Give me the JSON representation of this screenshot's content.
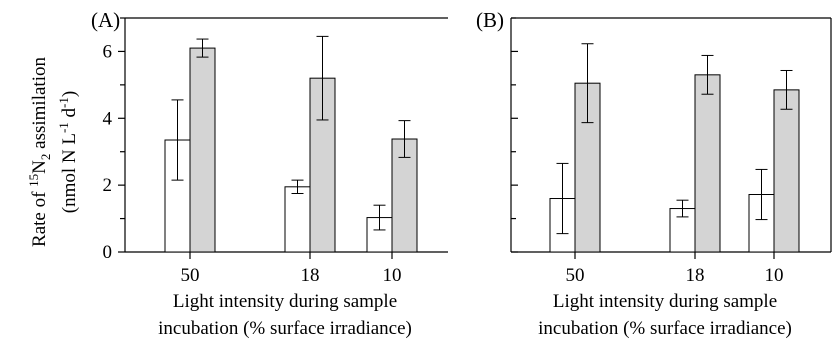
{
  "chart_data": [
    {
      "type": "bar",
      "panel_label": "(A)",
      "categories": [
        "50",
        "18",
        "10"
      ],
      "series": [
        {
          "values": [
            3.35,
            1.95,
            1.03
          ],
          "errors": [
            1.2,
            0.2,
            0.37
          ]
        },
        {
          "values": [
            6.1,
            5.2,
            3.38
          ],
          "errors": [
            0.27,
            1.25,
            0.55
          ]
        }
      ],
      "colors": [
        "#ffffff",
        "#d4d4d4"
      ],
      "ylim": [
        0,
        7.0
      ],
      "yticks": [
        "0",
        "2",
        "4",
        "6"
      ],
      "ylabel_line1": "Rate of ",
      "ylabel_sup1": "15",
      "ylabel_mid": "N",
      "ylabel_sub": "2",
      "ylabel_end": " assimilation",
      "ylabel_line2_a": "(nmol N L",
      "ylabel_line2_sup1": "-1",
      "ylabel_line2_b": " d",
      "ylabel_line2_sup2": "-1",
      "ylabel_line2_c": ")",
      "xlabel_line1": "Light intensity during sample",
      "xlabel_line2": "incubation (% surface irradiance)"
    },
    {
      "type": "bar",
      "panel_label": "(B)",
      "categories": [
        "50",
        "18",
        "10"
      ],
      "series": [
        {
          "values": [
            1.6,
            1.3,
            1.72
          ],
          "errors": [
            1.05,
            0.25,
            0.75
          ]
        },
        {
          "values": [
            5.05,
            5.3,
            4.85
          ],
          "errors": [
            1.18,
            0.58,
            0.58
          ]
        }
      ],
      "colors": [
        "#ffffff",
        "#d4d4d4"
      ],
      "ylim": [
        0,
        7.0
      ],
      "yticks": [
        "",
        "",
        "",
        ""
      ],
      "xlabel_line1": "Light intensity during sample",
      "xlabel_line2": "incubation (% surface irradiance)"
    }
  ]
}
